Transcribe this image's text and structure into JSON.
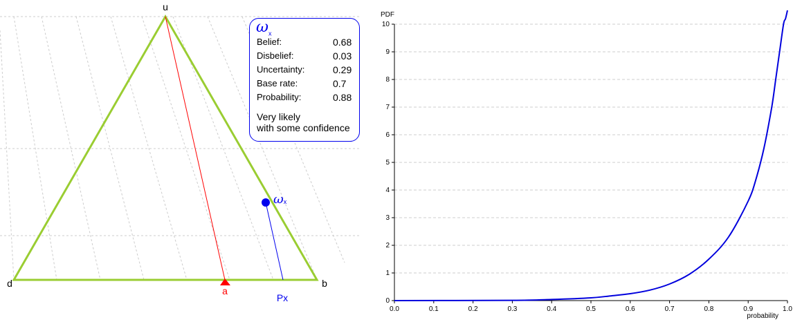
{
  "triangle": {
    "vertex_labels": {
      "top": "u",
      "left": "d",
      "right": "b"
    },
    "base_rate_label": "a",
    "projection_label": "Px",
    "point_label_symbol": "ω",
    "point_label_sub": "x",
    "colors": {
      "triangle": "#9acd32",
      "base_rate": "#ff0000",
      "opinion": "#0000ee",
      "grid": "#cccccc"
    }
  },
  "opinion_panel": {
    "symbol": "ω",
    "subscript": "x",
    "rows": [
      {
        "label": "Belief:",
        "value": "0.68"
      },
      {
        "label": "Disbelief:",
        "value": "0.03"
      },
      {
        "label": "Uncertainty:",
        "value": "0.29"
      },
      {
        "label": "Base rate:",
        "value": "0.7"
      },
      {
        "label": "Probability:",
        "value": "0.88"
      }
    ],
    "verbal_line1": "Very likely",
    "verbal_line2": "with some confidence"
  },
  "chart_data": {
    "type": "line",
    "title": "",
    "ylabel": "PDF",
    "xlabel": "probability",
    "xlim": [
      0,
      1
    ],
    "ylim": [
      0,
      10
    ],
    "x_ticks": [
      "0.0",
      "0.1",
      "0.2",
      "0.3",
      "0.4",
      "0.5",
      "0.6",
      "0.7",
      "0.8",
      "0.9",
      "1.0"
    ],
    "y_ticks": [
      "0",
      "1",
      "2",
      "3",
      "4",
      "5",
      "6",
      "7",
      "8",
      "9",
      "10"
    ],
    "grid": "horizontal dashed",
    "series_color": "#0000dd",
    "series": [
      {
        "x": [
          0.0,
          0.3,
          0.4,
          0.5,
          0.55,
          0.6,
          0.65,
          0.7,
          0.75,
          0.8,
          0.85,
          0.9,
          0.92,
          0.94,
          0.96,
          0.97,
          0.98,
          0.99,
          0.995,
          1.0
        ],
        "values": [
          0.0,
          0.01,
          0.04,
          0.1,
          0.17,
          0.25,
          0.38,
          0.6,
          0.95,
          1.5,
          2.3,
          3.6,
          4.4,
          5.5,
          7.0,
          8.0,
          9.0,
          10.0,
          10.2,
          10.5
        ]
      }
    ]
  }
}
